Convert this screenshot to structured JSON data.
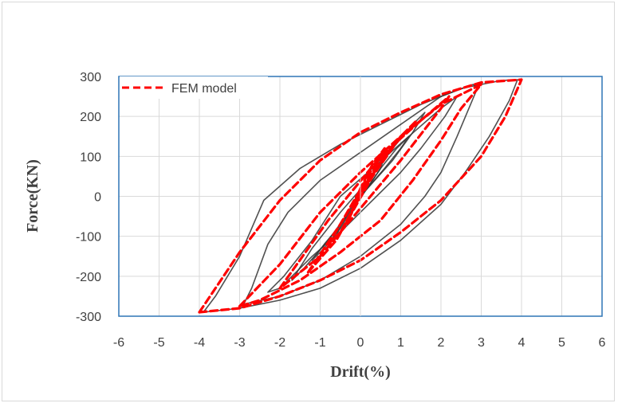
{
  "chart_data": {
    "type": "line",
    "title": "",
    "xlabel": "Drift(%)",
    "ylabel": "Force(KN)",
    "xlim": [
      -6,
      6
    ],
    "ylim": [
      -300,
      300
    ],
    "x_ticks": [
      "-6",
      "-5",
      "-4",
      "-3",
      "-2",
      "-1",
      "0",
      "1",
      "2",
      "3",
      "4",
      "5",
      "6"
    ],
    "y_ticks": [
      "300",
      "200",
      "100",
      "0",
      "-100",
      "-200",
      "-300"
    ],
    "grid": true,
    "legend_position": "top-left",
    "series": [
      {
        "name": "",
        "style": "solid",
        "color": "#333333",
        "loops": [
          [
            [
              0,
              0
            ],
            [
              0.3,
              40
            ],
            [
              0.5,
              70
            ],
            [
              0.6,
              100
            ],
            [
              0.4,
              70
            ],
            [
              0.2,
              40
            ],
            [
              -0.1,
              0
            ],
            [
              -0.3,
              -40
            ],
            [
              -0.5,
              -75
            ],
            [
              -0.6,
              -100
            ],
            [
              -0.4,
              -75
            ],
            [
              -0.2,
              -40
            ],
            [
              0,
              0
            ]
          ],
          [
            [
              0,
              0
            ],
            [
              0.6,
              70
            ],
            [
              1.0,
              120
            ],
            [
              1.2,
              150
            ],
            [
              0.9,
              120
            ],
            [
              0.5,
              70
            ],
            [
              0.1,
              10
            ],
            [
              -0.4,
              -60
            ],
            [
              -0.9,
              -120
            ],
            [
              -1.2,
              -160
            ],
            [
              -0.9,
              -130
            ],
            [
              -0.5,
              -80
            ],
            [
              0,
              0
            ]
          ],
          [
            [
              0,
              0
            ],
            [
              0.8,
              90
            ],
            [
              1.3,
              160
            ],
            [
              1.6,
              210
            ],
            [
              1.3,
              180
            ],
            [
              0.8,
              120
            ],
            [
              0.2,
              40
            ],
            [
              -0.5,
              -40
            ],
            [
              -1.2,
              -130
            ],
            [
              -1.7,
              -210
            ],
            [
              -1.4,
              -180
            ],
            [
              -0.8,
              -110
            ],
            [
              0,
              0
            ]
          ],
          [
            [
              -0.5,
              0
            ],
            [
              0.3,
              70
            ],
            [
              1.2,
              150
            ],
            [
              2.0,
              220
            ],
            [
              2.4,
              250
            ],
            [
              2.1,
              200
            ],
            [
              1.5,
              120
            ],
            [
              1.0,
              60
            ],
            [
              0.4,
              0
            ],
            [
              -0.4,
              -80
            ],
            [
              -1.2,
              -150
            ],
            [
              -2.0,
              -230
            ],
            [
              -2.3,
              -240
            ],
            [
              -1.9,
              -200
            ],
            [
              -1.2,
              -110
            ],
            [
              -0.5,
              0
            ]
          ],
          [
            [
              -1.8,
              -40
            ],
            [
              -1.0,
              40
            ],
            [
              0,
              110
            ],
            [
              1.0,
              180
            ],
            [
              2.0,
              250
            ],
            [
              2.8,
              280
            ],
            [
              2.9,
              270
            ],
            [
              2.4,
              150
            ],
            [
              2.0,
              60
            ],
            [
              1.6,
              0
            ],
            [
              1.0,
              -70
            ],
            [
              0,
              -150
            ],
            [
              -1.0,
              -210
            ],
            [
              -2.0,
              -250
            ],
            [
              -2.9,
              -270
            ],
            [
              -2.7,
              -230
            ],
            [
              -2.3,
              -120
            ],
            [
              -1.8,
              -40
            ]
          ],
          [
            [
              -2.4,
              -10
            ],
            [
              -1.5,
              70
            ],
            [
              -0.5,
              130
            ],
            [
              0.5,
              180
            ],
            [
              1.5,
              230
            ],
            [
              2.5,
              270
            ],
            [
              3.5,
              290
            ],
            [
              3.9,
              292
            ],
            [
              3.7,
              240
            ],
            [
              3.2,
              150
            ],
            [
              2.6,
              60
            ],
            [
              2.0,
              -20
            ],
            [
              1.0,
              -110
            ],
            [
              0,
              -180
            ],
            [
              -1.0,
              -230
            ],
            [
              -2.0,
              -260
            ],
            [
              -3.0,
              -280
            ],
            [
              -3.9,
              -290
            ],
            [
              -3.6,
              -250
            ],
            [
              -3.0,
              -150
            ],
            [
              -2.4,
              -10
            ]
          ]
        ]
      },
      {
        "name": "FEM model",
        "style": "dashed",
        "color": "#ff0000",
        "loops": [
          [
            [
              -0.3,
              -60
            ],
            [
              0,
              10
            ],
            [
              0.3,
              60
            ],
            [
              0.6,
              120
            ],
            [
              0.3,
              80
            ],
            [
              0,
              20
            ],
            [
              -0.3,
              -60
            ]
          ],
          [
            [
              -0.8,
              -120
            ],
            [
              -0.2,
              -20
            ],
            [
              0.4,
              70
            ],
            [
              1.0,
              150
            ],
            [
              0.6,
              100
            ],
            [
              0.1,
              20
            ],
            [
              -0.5,
              -90
            ],
            [
              -0.8,
              -120
            ]
          ],
          [
            [
              -1.3,
              -190
            ],
            [
              -0.5,
              -70
            ],
            [
              0.3,
              70
            ],
            [
              1.4,
              190
            ],
            [
              1.0,
              150
            ],
            [
              0.3,
              50
            ],
            [
              -0.6,
              -110
            ],
            [
              -1.3,
              -190
            ]
          ],
          [
            [
              -2.0,
              -230
            ],
            [
              -0.8,
              -60
            ],
            [
              0.5,
              100
            ],
            [
              1.5,
              190
            ],
            [
              2.2,
              250
            ],
            [
              2.0,
              220
            ],
            [
              1.0,
              90
            ],
            [
              0,
              -30
            ],
            [
              -1.0,
              -150
            ],
            [
              -2.0,
              -230
            ]
          ],
          [
            [
              -3.0,
              -275
            ],
            [
              -2.0,
              -170
            ],
            [
              -1.0,
              -40
            ],
            [
              0,
              60
            ],
            [
              1.0,
              150
            ],
            [
              2.0,
              230
            ],
            [
              3.0,
              280
            ],
            [
              2.5,
              220
            ],
            [
              2.0,
              140
            ],
            [
              1.3,
              40
            ],
            [
              0.5,
              -60
            ],
            [
              -0.5,
              -140
            ],
            [
              -1.5,
              -210
            ],
            [
              -2.5,
              -260
            ],
            [
              -3.0,
              -275
            ]
          ],
          [
            [
              -4.0,
              -290
            ],
            [
              -3.0,
              -140
            ],
            [
              -2.0,
              -10
            ],
            [
              -1.0,
              90
            ],
            [
              0,
              160
            ],
            [
              1.0,
              210
            ],
            [
              2.0,
              255
            ],
            [
              3.0,
              285
            ],
            [
              4.0,
              292
            ],
            [
              3.6,
              200
            ],
            [
              3.0,
              100
            ],
            [
              2.0,
              -10
            ],
            [
              1.0,
              -90
            ],
            [
              0,
              -160
            ],
            [
              -1.0,
              -210
            ],
            [
              -2.0,
              -250
            ],
            [
              -3.0,
              -280
            ],
            [
              -4.0,
              -290
            ]
          ]
        ]
      }
    ]
  }
}
